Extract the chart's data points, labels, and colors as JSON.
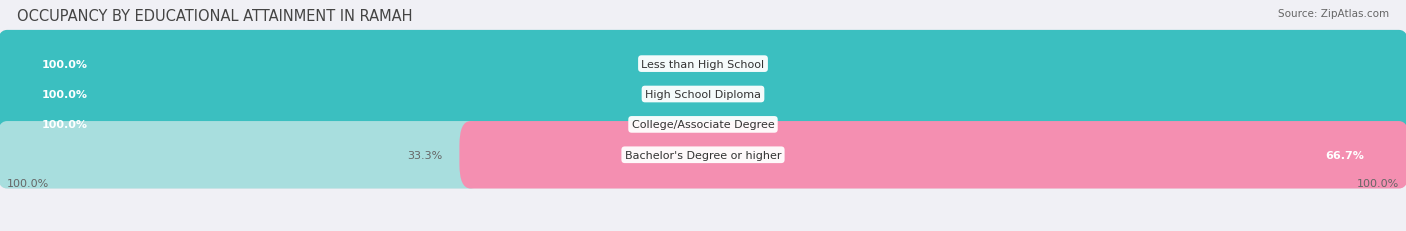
{
  "title": "OCCUPANCY BY EDUCATIONAL ATTAINMENT IN RAMAH",
  "source": "Source: ZipAtlas.com",
  "categories": [
    "Less than High School",
    "High School Diploma",
    "College/Associate Degree",
    "Bachelor's Degree or higher"
  ],
  "owner_values": [
    100.0,
    100.0,
    100.0,
    33.3
  ],
  "renter_values": [
    0.0,
    0.0,
    0.0,
    66.7
  ],
  "owner_color": "#3bbfc0",
  "renter_color": "#f48fb1",
  "owner_color_light": "#a8dede",
  "bg_color": "#f0f0f5",
  "bar_bg_color": "#e2e2ea",
  "title_fontsize": 10.5,
  "source_fontsize": 7.5,
  "label_fontsize": 8,
  "cat_fontsize": 8,
  "legend_fontsize": 8.5,
  "axis_label_fontsize": 8
}
